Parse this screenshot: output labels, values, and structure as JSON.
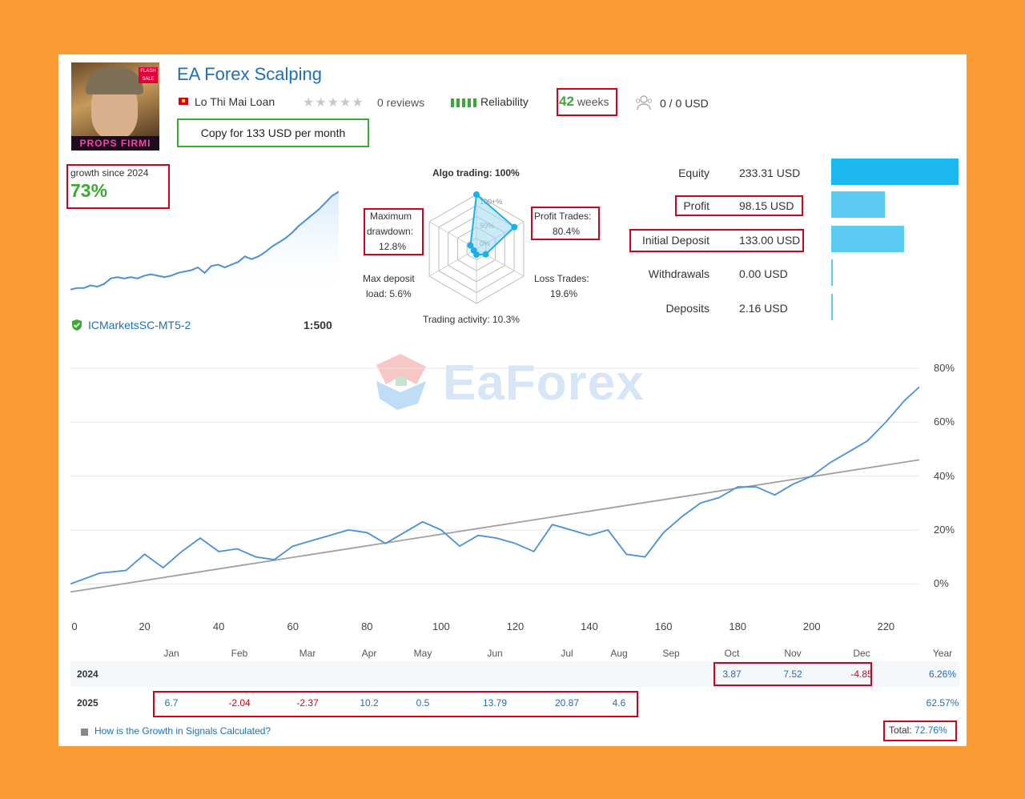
{
  "header": {
    "title": "EA Forex Scalping",
    "author": "Lo Thi Mai Loan",
    "reviews": "0 reviews",
    "reliability": "Reliability",
    "weeks_num": "42",
    "weeks_word": "weeks",
    "subscribers": "0 / 0 USD",
    "copy_button": "Copy for 133 USD per month",
    "avatar_text": "PROPS FIRMI",
    "avatar_badge": "FLASH SALE"
  },
  "growth": {
    "label": "growth since 2024",
    "value": "73%",
    "broker": "ICMarketsSC-MT5-2",
    "leverage": "1:500",
    "sparkline": [
      2,
      3,
      3,
      5,
      4,
      6,
      10,
      11,
      10,
      11,
      10,
      12,
      13,
      12,
      11,
      12,
      14,
      15,
      16,
      18,
      14,
      19,
      20,
      18,
      20,
      22,
      26,
      24,
      26,
      29,
      33,
      36,
      39,
      43,
      48,
      52,
      56,
      60,
      65,
      70,
      73
    ]
  },
  "radar": {
    "algo": "Algo trading: 100%",
    "profit_label": "Profit Trades:",
    "profit_value": "80.4%",
    "loss_label": "Loss Trades:",
    "loss_value": "19.6%",
    "activity": "Trading activity: 10.3%",
    "load_label": "Max deposit",
    "load_value": "load: 5.6%",
    "dd_label1": "Maximum",
    "dd_label2": "drawdown:",
    "dd_value": "12.8%",
    "ring_100": "100+%",
    "ring_50": "50%",
    "ring_0": "0%",
    "values": [
      100,
      80.4,
      19.6,
      10.3,
      5.6,
      12.8
    ]
  },
  "stats": {
    "rows": [
      {
        "label": "Equity",
        "value": "233.31 USD",
        "bar": 1.0
      },
      {
        "label": "Profit",
        "value": "98.15 USD",
        "bar": 0.42
      },
      {
        "label": "Initial Deposit",
        "value": "133.00 USD",
        "bar": 0.57
      },
      {
        "label": "Withdrawals",
        "value": "0.00 USD",
        "bar": 0.0
      },
      {
        "label": "Deposits",
        "value": "2.16 USD",
        "bar": 0.01
      }
    ],
    "bar_color": "#1ab8ee",
    "bar_color_light": "#5ccbf4"
  },
  "watermark": "EaForex",
  "chart_data": {
    "type": "line",
    "xlabel": "",
    "ylabel": "",
    "x_ticks": [
      "0",
      "20",
      "40",
      "60",
      "80",
      "100",
      "120",
      "140",
      "160",
      "180",
      "200",
      "220"
    ],
    "y_ticks": [
      "80%",
      "60%",
      "40%",
      "20%",
      "0%"
    ],
    "xlim": [
      0,
      229
    ],
    "ylim": [
      -10,
      85
    ],
    "grid": true,
    "series": [
      {
        "x": [
          0,
          8,
          15,
          20,
          25,
          30,
          35,
          40,
          45,
          50,
          55,
          60,
          65,
          70,
          75,
          80,
          85,
          90,
          95,
          100,
          105,
          110,
          115,
          120,
          125,
          130,
          135,
          140,
          145,
          150,
          155,
          160,
          165,
          170,
          175,
          180,
          185,
          190,
          195,
          200,
          205,
          210,
          215,
          220,
          225,
          229
        ],
        "y": [
          0,
          4,
          5,
          11,
          6,
          12,
          17,
          12,
          13,
          10,
          9,
          14,
          16,
          18,
          20,
          19,
          15,
          19,
          23,
          20,
          14,
          18,
          17,
          15,
          12,
          22,
          20,
          18,
          20,
          11,
          10,
          19,
          25,
          30,
          32,
          36,
          36,
          33,
          37,
          40,
          45,
          49,
          53,
          60,
          68,
          73
        ]
      },
      {
        "x": [
          0,
          229
        ],
        "y": [
          -3,
          46
        ]
      }
    ],
    "line_color": "#4a90d9",
    "trend_color": "#a0a0a0"
  },
  "months": [
    "Jan",
    "Feb",
    "Mar",
    "Apr",
    "May",
    "Jun",
    "Jul",
    "Aug",
    "Sep",
    "Oct",
    "Nov",
    "Dec",
    "Year"
  ],
  "table": {
    "rows": [
      {
        "year": "2024",
        "cells": [
          {
            "col": 9,
            "v": "3.87",
            "c": "#1e6fb8"
          },
          {
            "col": 10,
            "v": "7.52",
            "c": "#1e6fb8"
          },
          {
            "col": 11,
            "v": "-4.85",
            "c": "#d0021b"
          }
        ],
        "total": "6.26%"
      },
      {
        "year": "2025",
        "cells": [
          {
            "col": 0,
            "v": "6.7",
            "c": "#1e6fb8"
          },
          {
            "col": 1,
            "v": "-2.04",
            "c": "#d0021b"
          },
          {
            "col": 2,
            "v": "-2.37",
            "c": "#d0021b"
          },
          {
            "col": 3,
            "v": "10.2",
            "c": "#1e6fb8"
          },
          {
            "col": 4,
            "v": "0.5",
            "c": "#1e6fb8"
          },
          {
            "col": 5,
            "v": "13.79",
            "c": "#1e6fb8"
          },
          {
            "col": 6,
            "v": "20.87",
            "c": "#1e6fb8"
          },
          {
            "col": 7,
            "v": "4.6",
            "c": "#1e6fb8"
          }
        ],
        "total": "62.57%"
      }
    ],
    "grand_total_label": "Total:",
    "grand_total": "72.76%"
  },
  "footer_link": "How is the Growth in Signals Calculated?"
}
